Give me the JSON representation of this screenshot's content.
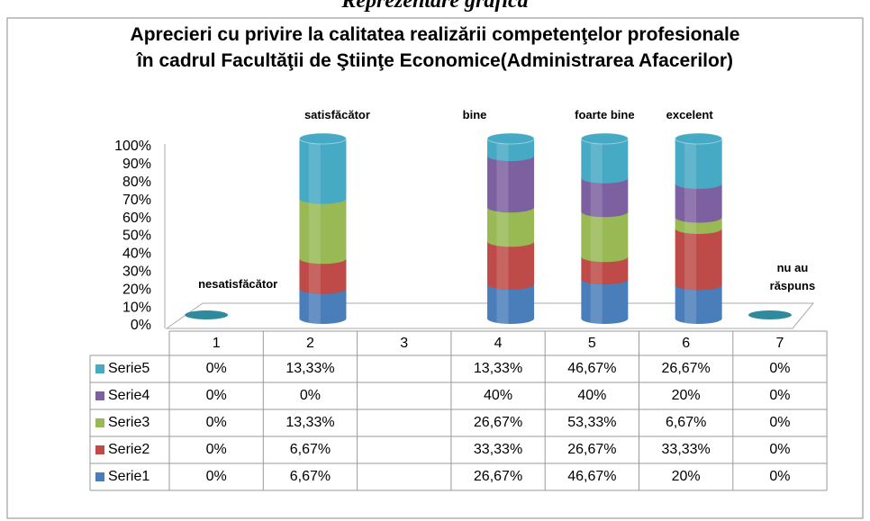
{
  "heading": "Reprezentare grafică",
  "chart_data": {
    "type": "cylinder",
    "stacking": "percent",
    "title": [
      "Aprecieri cu privire la calitatea realizării competenţelor profesionale",
      "în cadrul Facultăţii de Ştiinţe Economice(Administrarea Afacerilor)"
    ],
    "categories": [
      "1",
      "2",
      "3",
      "4",
      "5",
      "6",
      "7"
    ],
    "annotations": [
      "nesatisfăcător",
      "satisfăcător",
      null,
      "bine",
      "foarte bine",
      "excelent",
      "nu au răspuns"
    ],
    "ylim": [
      0,
      100
    ],
    "yticks": [
      {
        "value": 0,
        "label": "0%"
      },
      {
        "value": 10,
        "label": "10%"
      },
      {
        "value": 20,
        "label": "20%"
      },
      {
        "value": 30,
        "label": "30%"
      },
      {
        "value": 40,
        "label": "40%"
      },
      {
        "value": 50,
        "label": "50%"
      },
      {
        "value": 60,
        "label": "60%"
      },
      {
        "value": 70,
        "label": "70%"
      },
      {
        "value": 80,
        "label": "80%"
      },
      {
        "value": 90,
        "label": "90%"
      },
      {
        "value": 100,
        "label": "100%"
      }
    ],
    "series": [
      {
        "name": "Serie1",
        "color": "#4a7ebb",
        "values": [
          0,
          6.67,
          null,
          26.67,
          46.67,
          20,
          0
        ],
        "value_labels": [
          "0%",
          "6,67%",
          null,
          "26,67%",
          "46,67%",
          "20%",
          "0%"
        ]
      },
      {
        "name": "Serie2",
        "color": "#be4b48",
        "values": [
          0,
          6.67,
          null,
          33.33,
          26.67,
          33.33,
          0
        ],
        "value_labels": [
          "0%",
          "6,67%",
          null,
          "33,33%",
          "26,67%",
          "33,33%",
          "0%"
        ]
      },
      {
        "name": "Serie3",
        "color": "#98b954",
        "values": [
          0,
          13.33,
          null,
          26.67,
          53.33,
          6.67,
          0
        ],
        "value_labels": [
          "0%",
          "13,33%",
          null,
          "26,67%",
          "53,33%",
          "6,67%",
          "0%"
        ]
      },
      {
        "name": "Serie4",
        "color": "#7d60a0",
        "values": [
          0,
          0,
          null,
          40,
          40,
          20,
          0
        ],
        "value_labels": [
          "0%",
          "0%",
          null,
          "40%",
          "40%",
          "20%",
          "0%"
        ]
      },
      {
        "name": "Serie5",
        "color": "#46aac5",
        "values": [
          0,
          13.33,
          null,
          13.33,
          46.67,
          26.67,
          0
        ],
        "value_labels": [
          "0%",
          "13,33%",
          null,
          "13,33%",
          "46,67%",
          "26,67%",
          "0%"
        ]
      }
    ]
  }
}
